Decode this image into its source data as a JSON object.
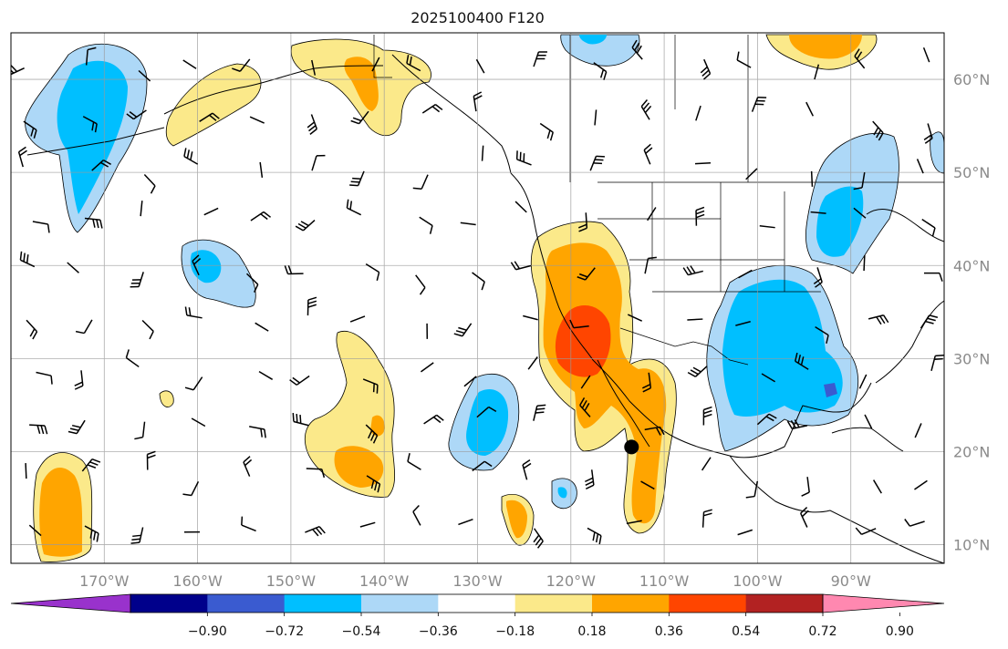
{
  "title": "2025100400 F120",
  "map": {
    "type": "geographic-anomaly-map",
    "projection": "plate carree",
    "lon_range": [
      -180,
      -80
    ],
    "lat_range": [
      8,
      65
    ],
    "gridlines": true,
    "lat_ticks": [
      {
        "value": 10,
        "label": "10°N"
      },
      {
        "value": 20,
        "label": "20°N"
      },
      {
        "value": 30,
        "label": "30°N"
      },
      {
        "value": 40,
        "label": "40°N"
      },
      {
        "value": 50,
        "label": "50°N"
      },
      {
        "value": 60,
        "label": "60°N"
      }
    ],
    "lon_ticks": [
      {
        "value": -170,
        "label": "170°W"
      },
      {
        "value": -160,
        "label": "160°W"
      },
      {
        "value": -150,
        "label": "150°W"
      },
      {
        "value": -140,
        "label": "140°W"
      },
      {
        "value": -130,
        "label": "130°W"
      },
      {
        "value": -120,
        "label": "120°W"
      },
      {
        "value": -110,
        "label": "110°W"
      },
      {
        "value": -100,
        "label": "100°W"
      },
      {
        "value": -90,
        "label": "90°W"
      }
    ],
    "marker": {
      "lon": -113.5,
      "lat": 20.5,
      "color": "#000000"
    }
  },
  "colorbar": {
    "extend": "both",
    "bins": [
      "#9932cc",
      "#00008b",
      "#3a5bd0",
      "#00bfff",
      "#add8f7",
      "#ffffff",
      "#fbe98a",
      "#ffa500",
      "#ff4500",
      "#b22222",
      "#ff88b0"
    ],
    "labels": [
      "−0.90",
      "−0.72",
      "−0.54",
      "−0.36",
      "−0.18",
      "0.18",
      "0.36",
      "0.54",
      "0.72",
      "0.90"
    ]
  },
  "colors": {
    "neg_weak": "#add8f7",
    "neg_mod": "#00bfff",
    "neg_strong": "#3a5bd0",
    "pos_weak": "#fbe98a",
    "pos_mod": "#ffa500",
    "pos_strong": "#ff4500"
  }
}
